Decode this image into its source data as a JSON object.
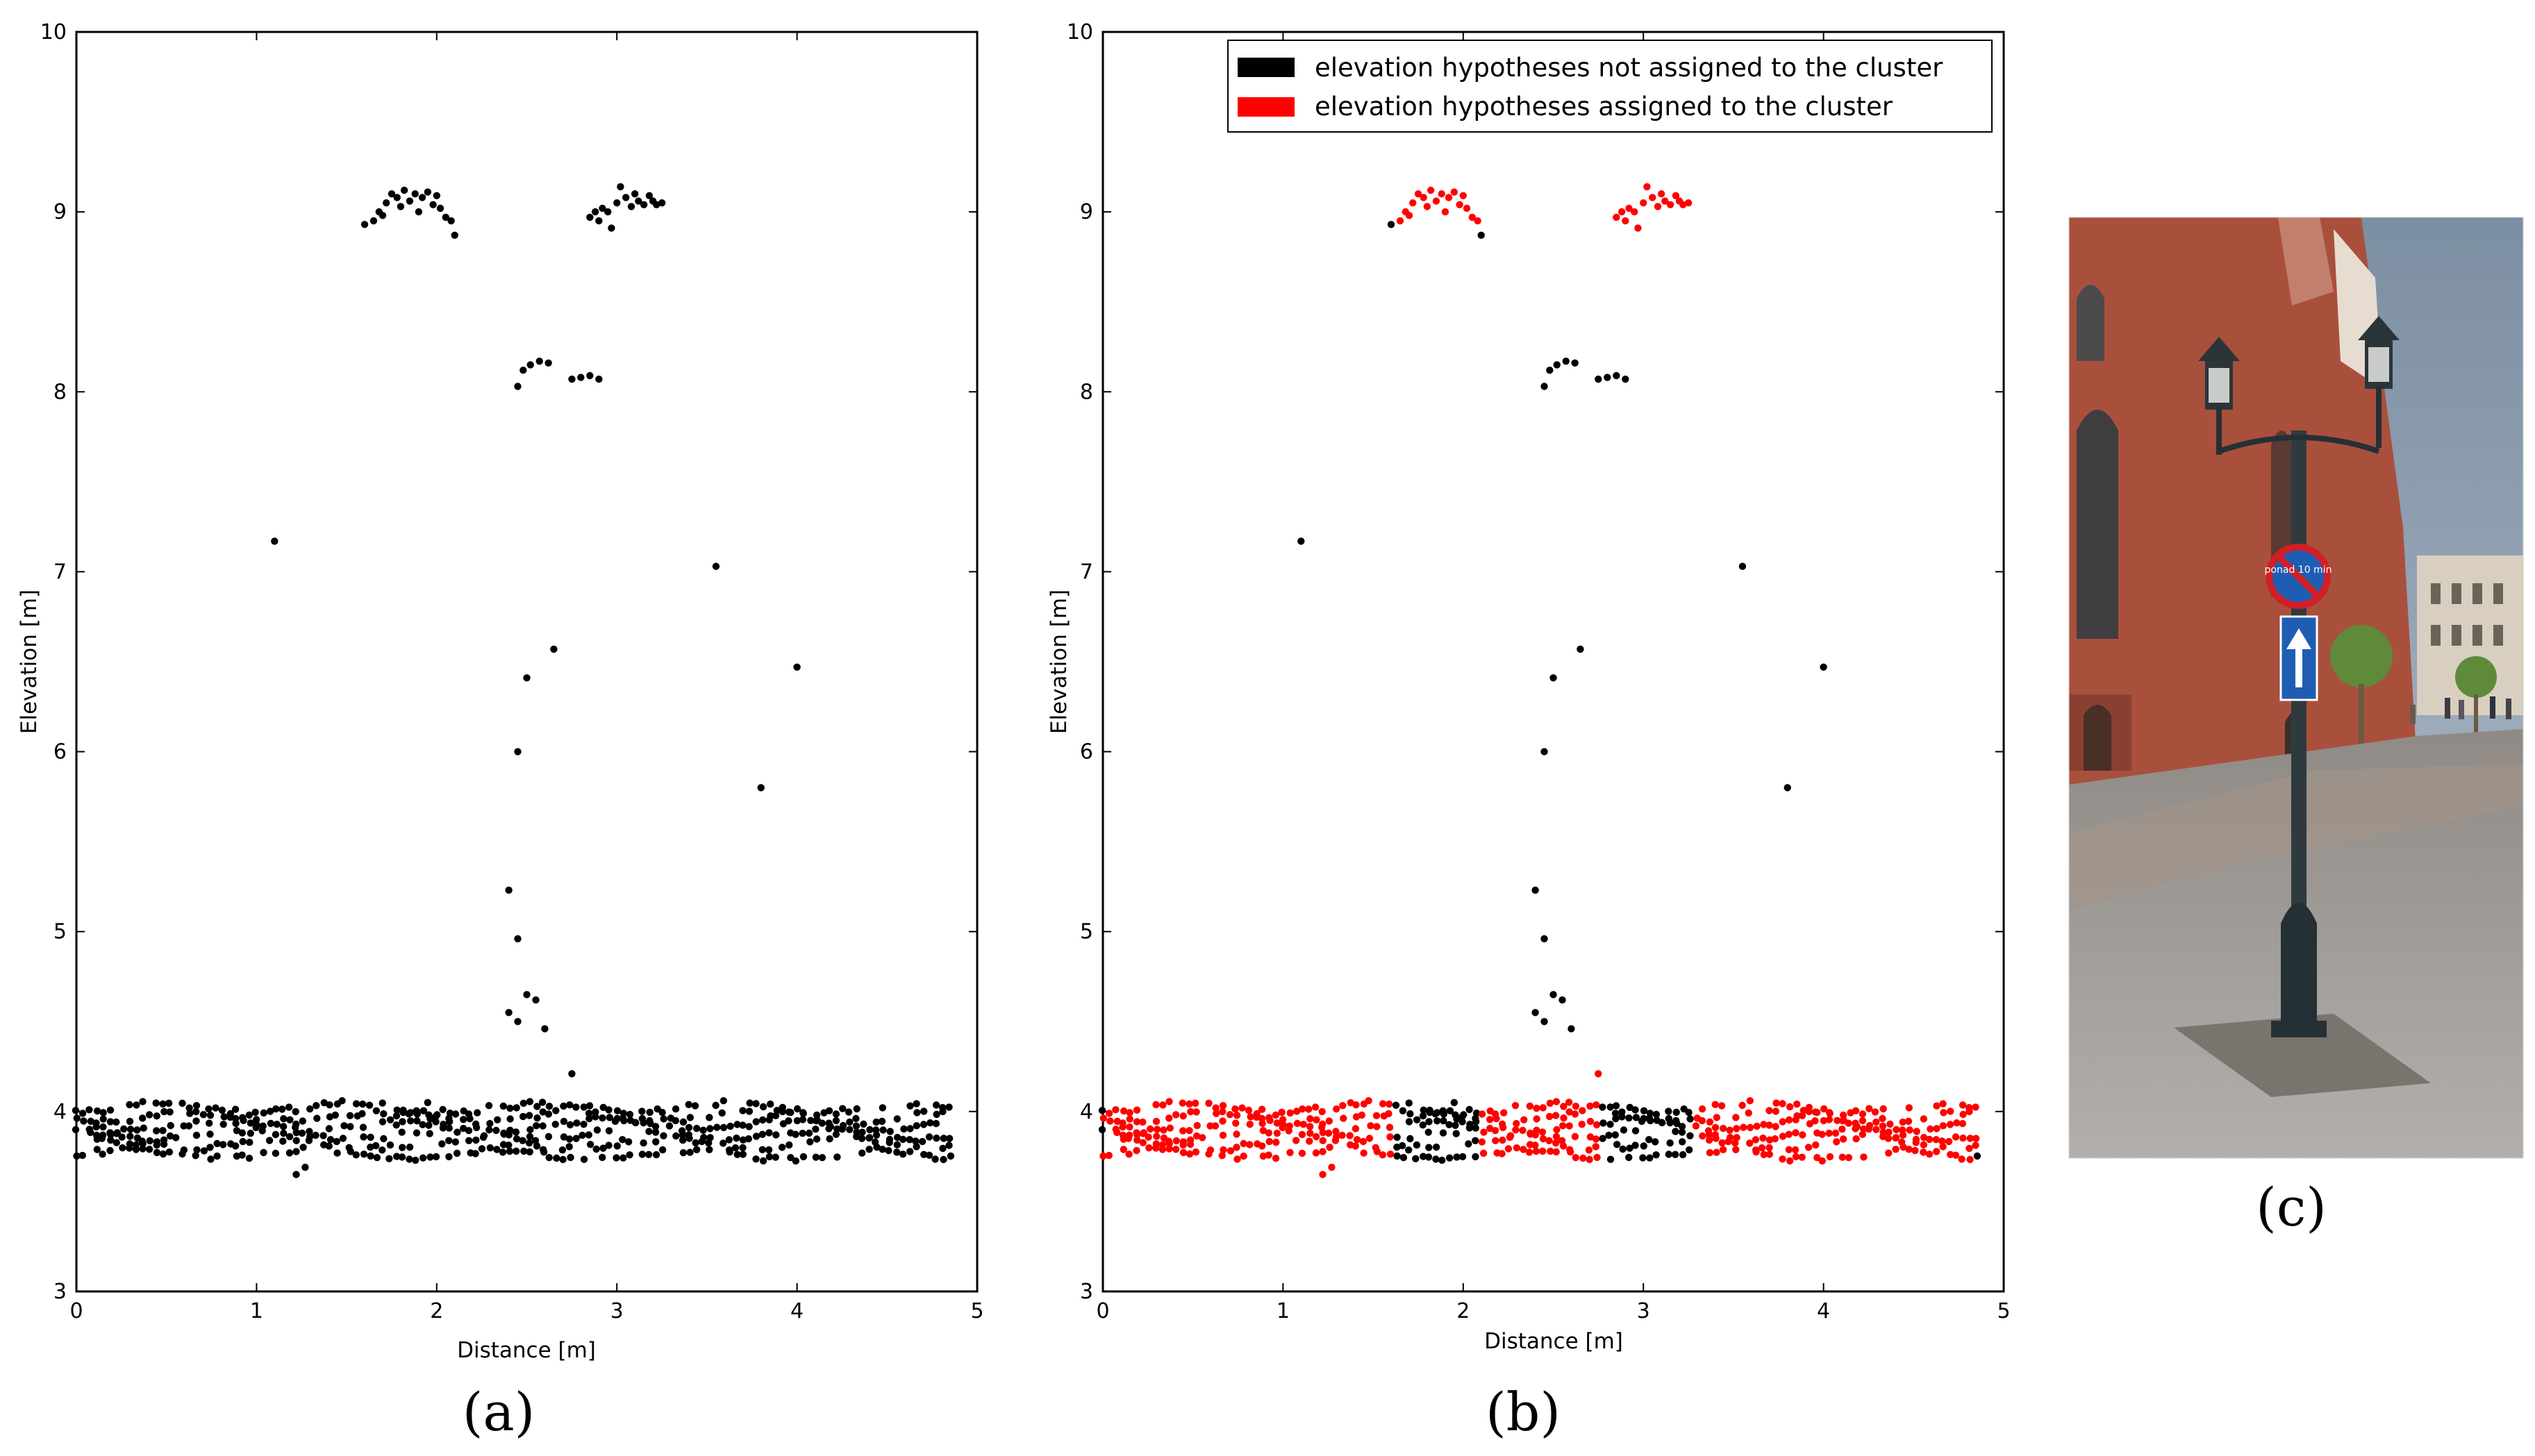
{
  "chart_data": [
    {
      "type": "scatter",
      "panel_label": "(a)",
      "xlabel": "Distance [m]",
      "ylabel": "Elevation [m]",
      "xlim": [
        0,
        5
      ],
      "ylim": [
        3,
        10
      ],
      "xticks": [
        "0",
        "1",
        "2",
        "3",
        "4",
        "5"
      ],
      "yticks": [
        "3",
        "4",
        "5",
        "6",
        "7",
        "8",
        "9",
        "10"
      ],
      "colors": {
        "not_assigned": "#000000"
      }
    },
    {
      "type": "scatter",
      "panel_label": "(b)",
      "xlabel": "Distance [m]",
      "ylabel": "Elevation [m]",
      "xlim": [
        0,
        5
      ],
      "ylim": [
        3,
        10
      ],
      "xticks": [
        "0",
        "1",
        "2",
        "3",
        "4",
        "5"
      ],
      "yticks": [
        "3",
        "4",
        "5",
        "6",
        "7",
        "8",
        "9",
        "10"
      ],
      "legend": [
        {
          "label": "elevation hypotheses not assigned to the cluster",
          "color": "#000000"
        },
        {
          "label": "elevation hypotheses assigned to the cluster",
          "color": "#ff0000"
        }
      ],
      "legend_position": "top-right",
      "colors": {
        "not_assigned": "#000000",
        "assigned": "#ff0000"
      },
      "assigned_ground_ranges": [
        [
          0,
          1.62
        ],
        [
          2.08,
          2.75
        ],
        [
          3.27,
          4.85
        ]
      ],
      "assigned_top_clusters": [
        "left crown (x 1.65–2.08, y 8.9–9.15)",
        "right crown (x 2.85–3.25, y 8.9–9.15)"
      ]
    }
  ],
  "scatter_points": {
    "isolated": [
      [
        1.1,
        7.17
      ],
      [
        3.55,
        7.03
      ],
      [
        4.0,
        6.47
      ],
      [
        3.8,
        5.8
      ],
      [
        2.45,
        6.0
      ],
      [
        2.5,
        6.41
      ],
      [
        2.65,
        6.57
      ],
      [
        2.4,
        5.23
      ],
      [
        2.45,
        4.96
      ],
      [
        2.4,
        4.55
      ],
      [
        2.45,
        4.5
      ],
      [
        2.5,
        4.65
      ],
      [
        2.55,
        4.62
      ],
      [
        2.6,
        4.46
      ],
      [
        2.75,
        4.21
      ],
      [
        2.45,
        8.03
      ],
      [
        2.48,
        8.12
      ],
      [
        2.52,
        8.15
      ],
      [
        2.57,
        8.17
      ],
      [
        2.62,
        8.16
      ],
      [
        2.75,
        8.07
      ],
      [
        2.8,
        8.08
      ],
      [
        2.85,
        8.09
      ],
      [
        2.9,
        8.07
      ]
    ],
    "left_crown": [
      [
        1.6,
        8.93
      ],
      [
        1.65,
        8.95
      ],
      [
        1.68,
        9.0
      ],
      [
        1.7,
        8.98
      ],
      [
        1.72,
        9.05
      ],
      [
        1.75,
        9.1
      ],
      [
        1.78,
        9.08
      ],
      [
        1.8,
        9.03
      ],
      [
        1.82,
        9.12
      ],
      [
        1.85,
        9.06
      ],
      [
        1.88,
        9.1
      ],
      [
        1.9,
        9.0
      ],
      [
        1.92,
        9.08
      ],
      [
        1.95,
        9.11
      ],
      [
        1.98,
        9.04
      ],
      [
        2.0,
        9.09
      ],
      [
        2.02,
        9.02
      ],
      [
        2.05,
        8.97
      ],
      [
        2.08,
        8.95
      ],
      [
        2.1,
        8.87
      ]
    ],
    "right_crown": [
      [
        2.85,
        8.97
      ],
      [
        2.88,
        9.0
      ],
      [
        2.9,
        8.95
      ],
      [
        2.92,
        9.02
      ],
      [
        2.95,
        9.0
      ],
      [
        2.97,
        8.91
      ],
      [
        3.0,
        9.05
      ],
      [
        3.02,
        9.14
      ],
      [
        3.05,
        9.08
      ],
      [
        3.08,
        9.03
      ],
      [
        3.1,
        9.1
      ],
      [
        3.12,
        9.06
      ],
      [
        3.15,
        9.04
      ],
      [
        3.18,
        9.09
      ],
      [
        3.2,
        9.06
      ],
      [
        3.22,
        9.04
      ],
      [
        3.25,
        9.05
      ]
    ]
  },
  "panel_c": {
    "panel_label": "(c)",
    "sign_text": "ponad 10 min"
  }
}
